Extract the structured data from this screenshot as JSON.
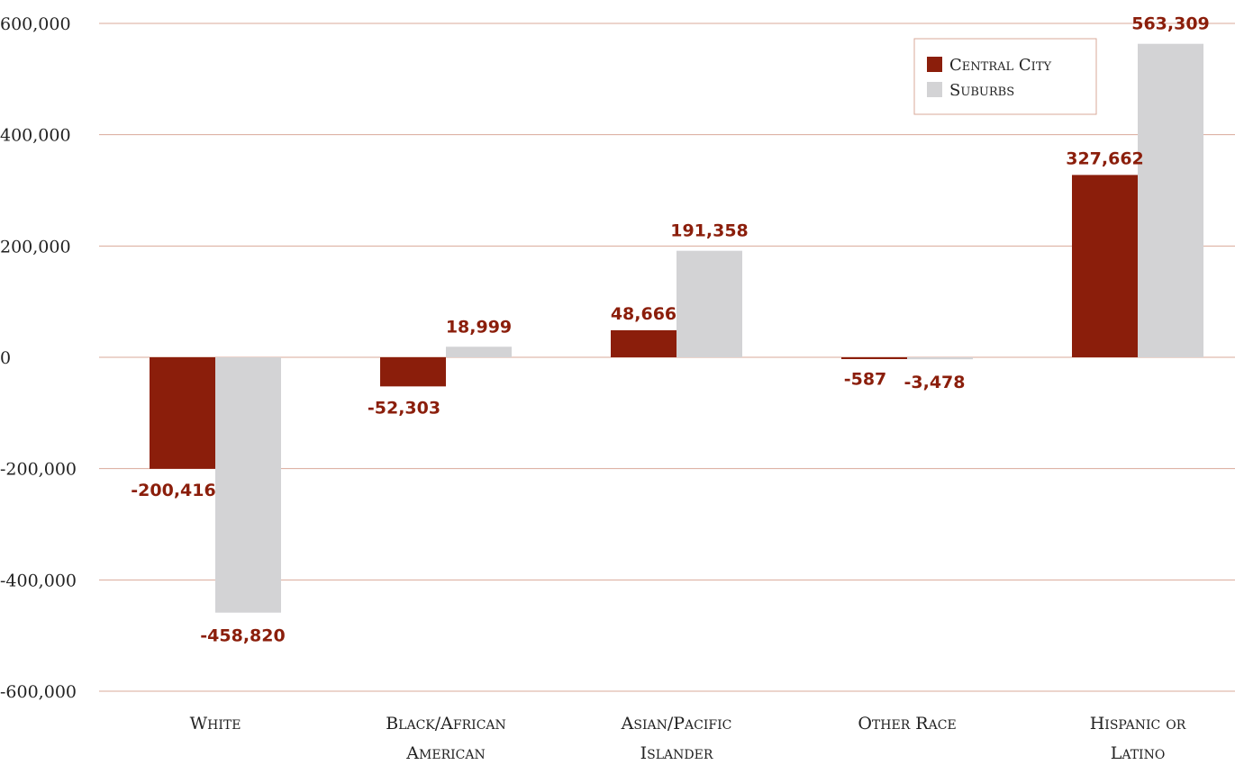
{
  "chart_data": {
    "type": "bar",
    "title": "",
    "xlabel": "",
    "ylabel": "",
    "ylim": [
      -600000,
      600000
    ],
    "yticks": [
      600000,
      400000,
      200000,
      0,
      -200000,
      -400000,
      -600000
    ],
    "ytick_labels": [
      "600,000",
      "400,000",
      "200,000",
      "0",
      "-200,000",
      "-400,000",
      "-600,000"
    ],
    "categories": [
      [
        "White"
      ],
      [
        "Black/African",
        "American"
      ],
      [
        "Asian/Pacific",
        "Islander"
      ],
      [
        "Other Race"
      ],
      [
        "Hispanic or",
        "Latino"
      ]
    ],
    "series": [
      {
        "name": "Central City",
        "color": "#8B1E0B",
        "values": [
          -200416,
          -52303,
          48666,
          -587,
          327662
        ],
        "labels": [
          "-200,416",
          "-52,303",
          "48,666",
          "-587",
          "327,662"
        ]
      },
      {
        "name": "Suburbs",
        "color": "#D3D3D5",
        "values": [
          -458820,
          18999,
          191358,
          -3478,
          563309
        ],
        "labels": [
          "-458,820",
          "18,999",
          "191,358",
          "-3,478",
          "563,309"
        ]
      }
    ],
    "data_label_color": "#8B1E0B",
    "gridline_color": "#D9A99A",
    "grid": true,
    "legend_position": "top-right"
  }
}
